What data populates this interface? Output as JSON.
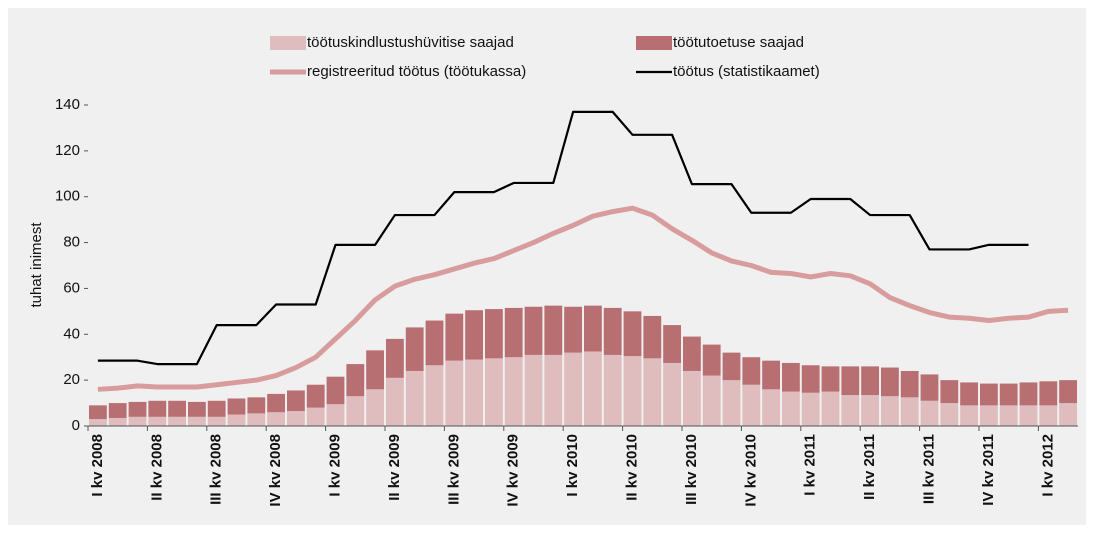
{
  "chart_data": {
    "type": "bar",
    "stacked": true,
    "y_label": "tuhat inimest",
    "categories": [
      "I kv 2008",
      null,
      null,
      "II kv 2008",
      null,
      null,
      "III kv 2008",
      null,
      null,
      "IV kv 2008",
      null,
      null,
      "I kv 2009",
      null,
      null,
      "II kv 2009",
      null,
      null,
      "III kv 2009",
      null,
      null,
      "IV kv 2009",
      null,
      null,
      "I kv 2010",
      null,
      null,
      "II kv 2010",
      null,
      null,
      "III kv 2010",
      null,
      null,
      "IV kv 2010",
      null,
      null,
      "I kv 2011",
      null,
      null,
      "II kv 2011",
      null,
      null,
      "III kv 2011",
      null,
      null,
      "IV kv 2011",
      null,
      null,
      "I kv 2012",
      null
    ],
    "series": [
      {
        "name": "töötuskindlustushüvitise saajad",
        "kind": "bar",
        "color": "#dfbcbd",
        "values": [
          3,
          3.5,
          4,
          4,
          4,
          4,
          4,
          5,
          5.5,
          6,
          6.5,
          8,
          9.5,
          13,
          16,
          21,
          24,
          26.5,
          28.5,
          29,
          29.5,
          30,
          31,
          31,
          32,
          32.5,
          31,
          30.5,
          29.5,
          27.5,
          24,
          22,
          20,
          18,
          16,
          15,
          14.5,
          15,
          13.5,
          13.5,
          13,
          12.5,
          11,
          10,
          9,
          9,
          9,
          9,
          9,
          10
        ]
      },
      {
        "name": "töötutoetuse saajad",
        "kind": "bar",
        "color": "#b86f72",
        "values": [
          6,
          6.5,
          6.5,
          7,
          7,
          6.5,
          7,
          7,
          7,
          8,
          9,
          10,
          12,
          14,
          17,
          17,
          19,
          19.5,
          20.5,
          21.5,
          21.5,
          21.5,
          21,
          21.5,
          20,
          20,
          20.5,
          19.5,
          18.5,
          16.5,
          15,
          13.5,
          12,
          12,
          12.5,
          12.5,
          12,
          11,
          12.5,
          12.5,
          12.5,
          11.5,
          11.5,
          10,
          10,
          9.5,
          9.5,
          10,
          10.5,
          10
        ]
      },
      {
        "name": "registreeritud töötus (töötukassa)",
        "kind": "line",
        "color": "#d89c9d",
        "values": [
          16,
          16.5,
          17.5,
          17,
          17,
          17,
          18,
          19,
          20,
          22,
          25.5,
          30,
          38,
          46,
          55,
          61,
          64,
          66,
          68.5,
          71,
          73,
          76.5,
          80,
          84,
          87.5,
          91.5,
          93.5,
          95,
          92,
          86,
          81,
          75.5,
          72,
          70,
          67,
          66.5,
          65,
          66.5,
          65.5,
          62,
          56,
          52.5,
          49.5,
          47.5,
          47,
          46,
          47,
          47.5,
          50,
          50.5
        ]
      },
      {
        "name": "töötus (statistikaamet)",
        "kind": "line",
        "color": "#000000",
        "values": [
          28.5,
          28.5,
          28.5,
          27,
          27,
          27,
          44,
          44,
          44,
          53,
          53,
          53,
          79,
          79,
          79,
          92,
          92,
          92,
          102,
          102,
          102,
          106,
          106,
          106,
          137,
          137,
          137,
          127,
          127,
          127,
          105.5,
          105.5,
          105.5,
          93,
          93,
          93,
          99,
          99,
          99,
          92,
          92,
          92,
          77,
          77,
          77,
          79,
          79,
          79,
          null,
          null
        ]
      }
    ],
    "ylim": [
      0,
      140
    ],
    "yticks": [
      0,
      20,
      40,
      60,
      80,
      100,
      120,
      140
    ],
    "grid": false,
    "legend": "top"
  }
}
